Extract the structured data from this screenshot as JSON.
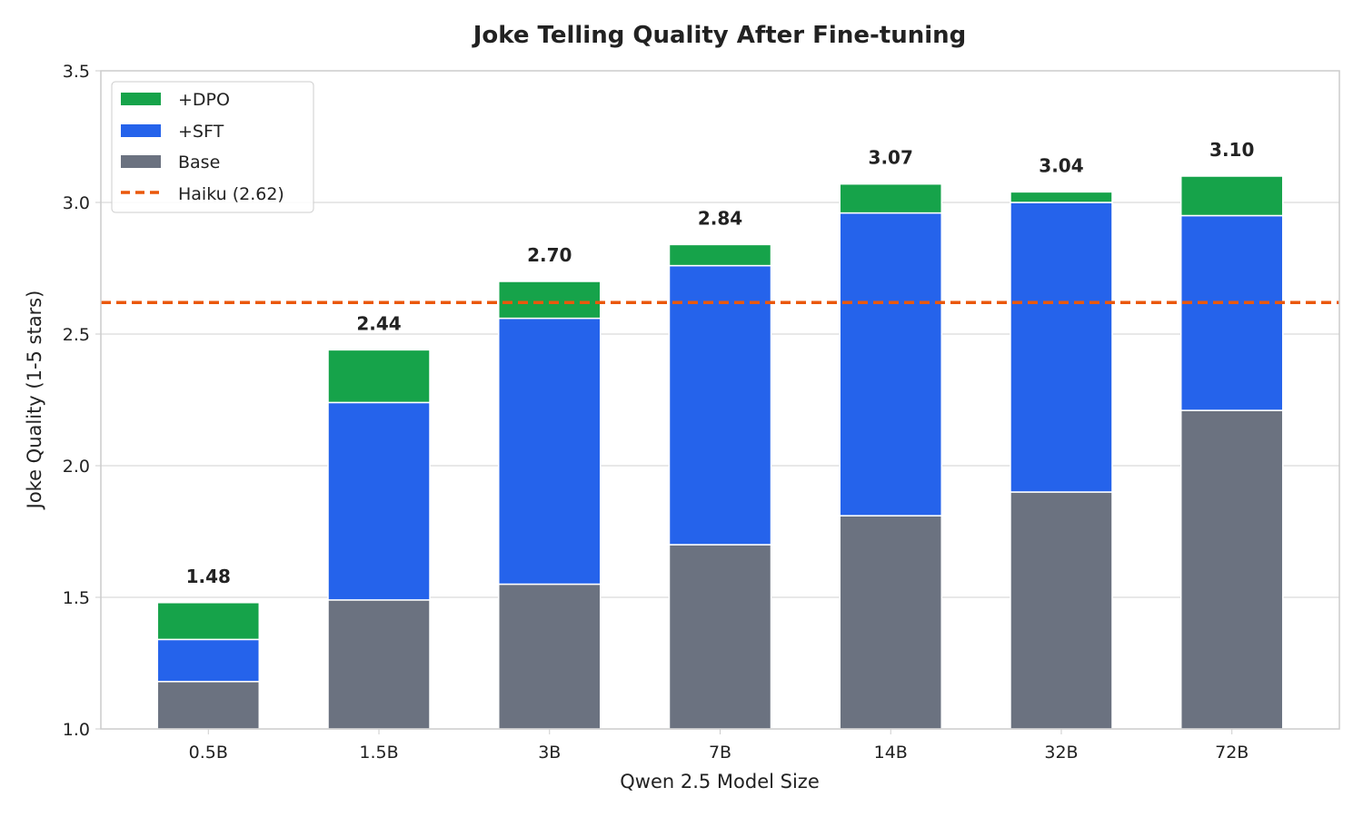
{
  "chart_data": {
    "type": "bar",
    "stacked": true,
    "title": "Joke Telling Quality After Fine-tuning",
    "xlabel": "Qwen 2.5 Model Size",
    "ylabel": "Joke Quality (1-5 stars)",
    "ylim": [
      1.0,
      3.5
    ],
    "yticks": [
      "1.0",
      "1.5",
      "2.0",
      "2.5",
      "3.0",
      "3.5"
    ],
    "grid": true,
    "legend_placement": "top-left",
    "categories": [
      "0.5B",
      "1.5B",
      "3B",
      "7B",
      "14B",
      "32B",
      "72B"
    ],
    "series": [
      {
        "name": "Base",
        "color": "#6b7280",
        "cumulative_top": [
          1.18,
          1.49,
          1.55,
          1.7,
          1.81,
          1.9,
          2.21
        ]
      },
      {
        "name": "+SFT",
        "color": "#2563eb",
        "cumulative_top": [
          1.34,
          2.24,
          2.56,
          2.76,
          2.96,
          3.0,
          2.95
        ]
      },
      {
        "name": "+DPO",
        "color": "#16a34a",
        "cumulative_top": [
          1.48,
          2.44,
          2.7,
          2.84,
          3.07,
          3.04,
          3.1
        ]
      }
    ],
    "total_labels": [
      "1.48",
      "2.44",
      "2.70",
      "2.84",
      "3.07",
      "3.04",
      "3.10"
    ],
    "reference_line": {
      "name": "Haiku (2.62)",
      "value": 2.62,
      "color": "#ea580c"
    },
    "legend": [
      "+DPO",
      "+SFT",
      "Base",
      "Haiku (2.62)"
    ]
  }
}
